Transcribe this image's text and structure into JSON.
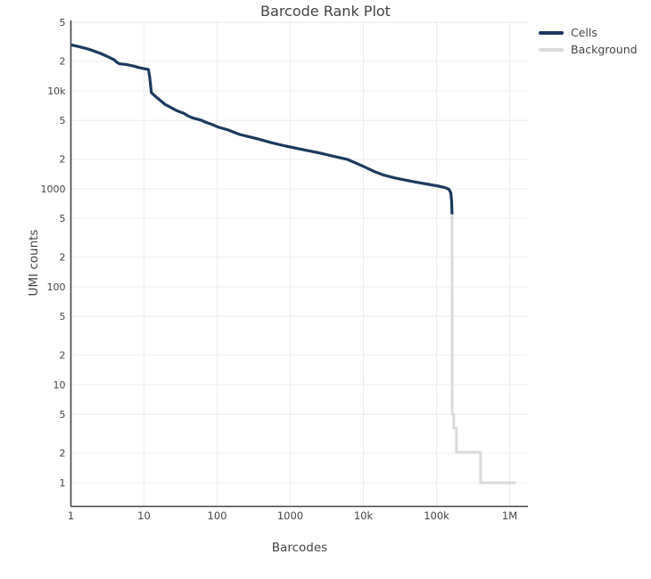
{
  "chart_data": {
    "type": "line",
    "title": "Barcode Rank Plot",
    "xlabel": "Barcodes",
    "ylabel": "UMI counts",
    "x_scale": "log",
    "y_scale": "log",
    "x_range_log": [
      0,
      6.25
    ],
    "y_range_log": [
      -0.241,
      4.718
    ],
    "grid": {
      "show": true,
      "color": "#ececec",
      "x_gridlines": "decades_only",
      "y_gridlines": "all_ticks"
    },
    "axis_line_color": "#444444",
    "tick_label_color": "#444444",
    "legend_position": "top-right",
    "x_ticks": [
      {
        "value": 1,
        "label": "1"
      },
      {
        "value": 10,
        "label": "10"
      },
      {
        "value": 100,
        "label": "100"
      },
      {
        "value": 1000,
        "label": "1000"
      },
      {
        "value": 10000,
        "label": "10k"
      },
      {
        "value": 100000,
        "label": "100k"
      },
      {
        "value": 1000000,
        "label": "1M"
      }
    ],
    "y_ticks": [
      {
        "value": 1,
        "label": "1"
      },
      {
        "value": 2,
        "label": "2"
      },
      {
        "value": 5,
        "label": "5"
      },
      {
        "value": 10,
        "label": "10"
      },
      {
        "value": 20,
        "label": "2"
      },
      {
        "value": 50,
        "label": "5"
      },
      {
        "value": 100,
        "label": "100"
      },
      {
        "value": 200,
        "label": "2"
      },
      {
        "value": 500,
        "label": "5"
      },
      {
        "value": 1000,
        "label": "1000"
      },
      {
        "value": 2000,
        "label": "2"
      },
      {
        "value": 5000,
        "label": "5"
      },
      {
        "value": 10000,
        "label": "10k"
      },
      {
        "value": 20000,
        "label": "2"
      },
      {
        "value": 50000,
        "label": "5"
      }
    ],
    "series": [
      {
        "name": "Background",
        "color": "#dbdbdb",
        "line_width": 3,
        "points": [
          [
            163000,
            550
          ],
          [
            164000,
            5.0
          ],
          [
            172000,
            5.0
          ],
          [
            172000,
            3.6
          ],
          [
            187000,
            3.6
          ],
          [
            187000,
            2.05
          ],
          [
            400000,
            2.05
          ],
          [
            400000,
            1.0
          ],
          [
            1200000,
            1.0
          ]
        ]
      },
      {
        "name": "Cells",
        "color": "#1c3a5f",
        "line_width": 3.2,
        "points": [
          [
            1,
            29500
          ],
          [
            1.3,
            28200
          ],
          [
            1.7,
            26800
          ],
          [
            2.1,
            25400
          ],
          [
            2.5,
            24200
          ],
          [
            3.0,
            22800
          ],
          [
            3.5,
            21600
          ],
          [
            3.9,
            20800
          ],
          [
            4.2,
            19700
          ],
          [
            4.6,
            18900
          ],
          [
            5.6,
            18600
          ],
          [
            7.0,
            18000
          ],
          [
            8.5,
            17300
          ],
          [
            9.8,
            16900
          ],
          [
            11.5,
            16500
          ],
          [
            12.0,
            13500
          ],
          [
            12.6,
            9600
          ],
          [
            14.5,
            8700
          ],
          [
            16,
            8200
          ],
          [
            19.5,
            7250
          ],
          [
            23,
            6800
          ],
          [
            26,
            6450
          ],
          [
            30,
            6150
          ],
          [
            35,
            5900
          ],
          [
            40,
            5550
          ],
          [
            46,
            5300
          ],
          [
            53,
            5150
          ],
          [
            61,
            5000
          ],
          [
            70,
            4780
          ],
          [
            81,
            4600
          ],
          [
            105,
            4250
          ],
          [
            140,
            4000
          ],
          [
            200,
            3600
          ],
          [
            350,
            3250
          ],
          [
            560,
            2950
          ],
          [
            870,
            2730
          ],
          [
            1450,
            2520
          ],
          [
            2400,
            2340
          ],
          [
            3900,
            2150
          ],
          [
            6100,
            1990
          ],
          [
            8200,
            1810
          ],
          [
            10800,
            1650
          ],
          [
            14400,
            1490
          ],
          [
            19000,
            1380
          ],
          [
            27000,
            1290
          ],
          [
            39000,
            1220
          ],
          [
            56000,
            1160
          ],
          [
            78000,
            1110
          ],
          [
            103000,
            1070
          ],
          [
            130000,
            1030
          ],
          [
            148000,
            990
          ],
          [
            157000,
            910
          ],
          [
            161000,
            740
          ],
          [
            163000,
            550
          ]
        ]
      }
    ],
    "legend": [
      {
        "label": "Cells",
        "color": "#1c3a5f"
      },
      {
        "label": "Background",
        "color": "#dbdbdb"
      }
    ]
  }
}
